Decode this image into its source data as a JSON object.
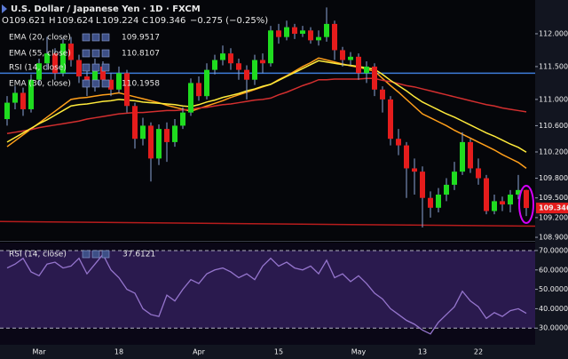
{
  "chart_data": [
    {
      "type": "candlestick",
      "title": "U.S. Dollar / Japanese Yen · 1D · FXCM",
      "ohlc_letters": [
        "O",
        "H",
        "L",
        "C"
      ],
      "change": "−0.275 (−0.25%)",
      "categories": [
        null,
        null,
        null,
        null,
        "Mar",
        null,
        null,
        null,
        null,
        null,
        null,
        null,
        null,
        null,
        "18",
        null,
        null,
        null,
        null,
        null,
        null,
        null,
        null,
        null,
        "Apr",
        null,
        null,
        null,
        null,
        null,
        null,
        null,
        null,
        null,
        "15",
        null,
        null,
        null,
        null,
        null,
        null,
        null,
        null,
        null,
        "May",
        null,
        null,
        null,
        null,
        null,
        null,
        null,
        "13",
        null,
        null,
        null,
        null,
        null,
        null,
        "22",
        null,
        null,
        null,
        null,
        null,
        null
      ],
      "open": [
        110.7,
        110.95,
        111.1,
        110.85,
        111.3,
        111.55,
        111.7,
        111.4,
        111.85,
        111.6,
        111.35,
        111.2,
        111.5,
        111.3,
        111.15,
        111.4,
        110.9,
        110.4,
        110.6,
        110.1,
        110.55,
        110.35,
        110.6,
        110.8,
        111.25,
        111.05,
        111.45,
        111.6,
        111.7,
        111.55,
        111.45,
        111.3,
        111.6,
        111.55,
        112.05,
        111.95,
        112.1,
        112.0,
        112.05,
        111.9,
        111.95,
        112.15,
        111.75,
        111.6,
        111.65,
        111.4,
        111.5,
        111.15,
        111.0,
        110.4,
        110.3,
        109.95,
        109.9,
        109.5,
        109.35,
        109.55,
        109.7,
        109.9,
        110.35,
        109.95,
        109.8,
        109.3,
        109.45,
        109.4,
        109.55,
        109.621
      ],
      "high": [
        111.05,
        111.2,
        111.18,
        111.38,
        111.62,
        111.95,
        111.78,
        111.92,
        111.95,
        111.68,
        111.45,
        111.62,
        111.58,
        111.4,
        111.5,
        111.45,
        110.95,
        110.72,
        110.65,
        110.62,
        110.65,
        110.7,
        110.88,
        111.32,
        111.35,
        111.55,
        111.68,
        111.82,
        111.78,
        111.62,
        111.52,
        111.68,
        111.7,
        112.12,
        112.15,
        112.2,
        112.15,
        112.12,
        112.1,
        112.05,
        112.4,
        112.2,
        111.8,
        111.72,
        111.7,
        111.58,
        111.55,
        111.2,
        111.05,
        110.55,
        110.35,
        110.1,
        109.98,
        109.6,
        109.65,
        109.8,
        110.05,
        110.5,
        110.4,
        110.1,
        109.85,
        109.55,
        109.52,
        109.62,
        109.85,
        109.624
      ],
      "low": [
        110.6,
        110.85,
        110.75,
        110.8,
        111.22,
        111.45,
        111.3,
        111.35,
        111.5,
        111.25,
        111.05,
        111.12,
        111.2,
        111.05,
        111.1,
        110.8,
        110.25,
        110.3,
        109.75,
        110.0,
        110.05,
        110.28,
        110.55,
        110.75,
        110.98,
        111.0,
        111.38,
        111.52,
        111.45,
        111.3,
        111.0,
        111.22,
        111.4,
        111.5,
        111.85,
        111.9,
        111.92,
        111.95,
        111.85,
        111.82,
        111.88,
        111.6,
        111.5,
        111.52,
        111.3,
        111.25,
        111.05,
        110.8,
        110.3,
        110.15,
        109.5,
        109.55,
        109.05,
        109.2,
        109.28,
        109.45,
        109.62,
        109.85,
        109.88,
        109.7,
        109.25,
        109.25,
        109.3,
        109.28,
        109.48,
        109.224
      ],
      "close": [
        110.95,
        111.1,
        110.85,
        111.3,
        111.55,
        111.7,
        111.4,
        111.85,
        111.6,
        111.35,
        111.2,
        111.5,
        111.3,
        111.15,
        111.4,
        110.9,
        110.4,
        110.6,
        110.1,
        110.55,
        110.35,
        110.6,
        110.8,
        111.25,
        111.05,
        111.45,
        111.6,
        111.7,
        111.55,
        111.45,
        111.3,
        111.6,
        111.55,
        112.05,
        111.95,
        112.1,
        112.0,
        112.05,
        111.9,
        111.95,
        112.15,
        111.75,
        111.6,
        111.65,
        111.4,
        111.5,
        111.15,
        111.0,
        110.4,
        110.3,
        109.95,
        109.9,
        109.5,
        109.35,
        109.55,
        109.7,
        109.9,
        110.35,
        109.95,
        109.8,
        109.3,
        109.45,
        109.4,
        109.55,
        109.62,
        109.346
      ],
      "up_color": "#1fdc1f",
      "down_color": "#e51c1c",
      "wick_color": "#8aa4d6",
      "series": [
        {
          "name": "EMA (20, close)",
          "color": "#ff9f1a",
          "values": [
            110.28,
            110.37,
            110.46,
            110.55,
            110.64,
            110.73,
            110.82,
            110.91,
            111.0,
            111.02,
            111.03,
            111.05,
            111.07,
            111.08,
            111.1,
            111.07,
            111.04,
            111.01,
            110.98,
            110.95,
            110.91,
            110.88,
            110.85,
            110.82,
            110.86,
            110.9,
            110.94,
            110.98,
            111.03,
            111.07,
            111.11,
            111.15,
            111.19,
            111.23,
            111.3,
            111.36,
            111.43,
            111.5,
            111.56,
            111.63,
            111.6,
            111.57,
            111.54,
            111.51,
            111.49,
            111.46,
            111.43,
            111.32,
            111.21,
            111.11,
            111.0,
            110.89,
            110.78,
            110.72,
            110.66,
            110.6,
            110.53,
            110.47,
            110.41,
            110.35,
            110.29,
            110.23,
            110.16,
            110.1,
            110.04,
            109.9517
          ]
        },
        {
          "name": "EMA (55, close)",
          "color": "#d32f2f",
          "values": [
            110.48,
            110.5,
            110.52,
            110.54,
            110.57,
            110.59,
            110.61,
            110.63,
            110.65,
            110.67,
            110.7,
            110.72,
            110.74,
            110.76,
            110.78,
            110.79,
            110.8,
            110.8,
            110.81,
            110.82,
            110.83,
            110.83,
            110.84,
            110.85,
            110.87,
            110.88,
            110.9,
            110.92,
            110.93,
            110.95,
            110.97,
            110.99,
            111.0,
            111.02,
            111.07,
            111.11,
            111.16,
            111.21,
            111.25,
            111.3,
            111.3,
            111.31,
            111.31,
            111.31,
            111.31,
            111.32,
            111.32,
            111.29,
            111.27,
            111.24,
            111.21,
            111.19,
            111.16,
            111.13,
            111.1,
            111.07,
            111.04,
            111.01,
            110.98,
            110.95,
            110.92,
            110.9,
            110.87,
            110.85,
            110.83,
            110.8107
          ]
        },
        {
          "name": "EMA (30, close)",
          "color": "#ffeb3b",
          "values": [
            110.35,
            110.42,
            110.49,
            110.56,
            110.63,
            110.69,
            110.76,
            110.83,
            110.9,
            110.92,
            110.93,
            110.95,
            110.97,
            110.98,
            111.0,
            110.99,
            110.98,
            110.96,
            110.95,
            110.94,
            110.93,
            110.92,
            110.9,
            110.89,
            110.92,
            110.96,
            110.99,
            111.03,
            111.06,
            111.09,
            111.13,
            111.16,
            111.2,
            111.23,
            111.29,
            111.35,
            111.41,
            111.47,
            111.53,
            111.59,
            111.57,
            111.55,
            111.53,
            111.52,
            111.5,
            111.48,
            111.46,
            111.38,
            111.29,
            111.21,
            111.13,
            111.04,
            110.96,
            110.9,
            110.84,
            110.78,
            110.73,
            110.67,
            110.61,
            110.55,
            110.49,
            110.44,
            110.38,
            110.32,
            110.27,
            110.1958
          ]
        }
      ],
      "overlay_legend": "RSI (14, close)",
      "hlines": [
        {
          "value": 111.4,
          "color": "#3d7bd9"
        }
      ],
      "trendline": {
        "values": [
          109.14,
          109.07
        ],
        "color": "#b71c1c"
      },
      "ylim": [
        108.86,
        112.514
      ],
      "yticks": [
        {
          "value": 112,
          "label": "112.000"
        },
        {
          "value": 111.5,
          "label": "111.500"
        },
        {
          "value": 111,
          "label": "111.000"
        },
        {
          "value": 110.6,
          "label": "110.600"
        },
        {
          "value": 110.2,
          "label": "110.200"
        },
        {
          "value": 109.8,
          "label": "109.800"
        },
        {
          "value": 109.5,
          "label": "109.500"
        },
        {
          "value": 109.2,
          "label": "109.200"
        },
        {
          "value": 108.9,
          "label": "108.900"
        }
      ]
    },
    {
      "type": "line",
      "series": [
        {
          "name": "RSI (14, close)",
          "color": "#9575cd",
          "values": [
            61,
            63,
            66,
            59,
            57,
            63,
            64,
            61,
            62,
            66,
            58,
            63,
            68,
            60,
            56,
            50,
            48,
            40,
            37,
            36,
            47,
            44,
            50,
            55,
            53,
            58,
            60,
            61,
            59,
            56,
            58,
            55,
            62,
            66,
            62,
            64,
            61,
            60,
            62,
            58,
            65,
            56,
            58,
            54,
            57,
            53,
            48,
            45,
            40,
            37,
            34,
            32,
            29,
            27,
            33,
            37,
            41,
            49,
            44,
            41,
            35,
            38,
            36,
            39,
            40,
            37.6121
          ]
        }
      ],
      "band": [
        30,
        70
      ],
      "band_color": "#2a1a4e",
      "ylim": [
        21.4,
        74.1
      ],
      "yticks": [
        {
          "value": 70,
          "label": "70.0000"
        },
        {
          "value": 60,
          "label": "60.0000"
        },
        {
          "value": 50,
          "label": "50.0000"
        },
        {
          "value": 40,
          "label": "40.0000"
        },
        {
          "value": 30,
          "label": "30.0000"
        }
      ]
    }
  ]
}
